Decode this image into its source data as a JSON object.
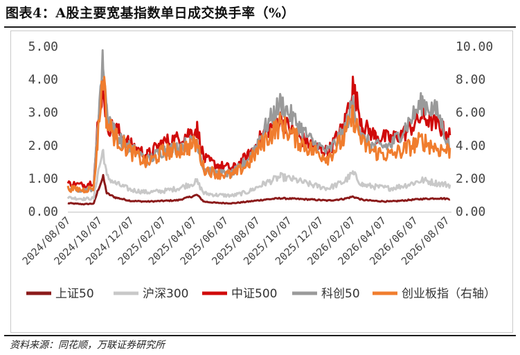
{
  "title": "图表4：A股主要宽基指数单日成交换手率（%）",
  "source": "资料来源：同花顺，万联证券研究所",
  "chart_data": {
    "type": "line",
    "x_start": "2024-08-01",
    "x_end": "2026-08-10",
    "x_ticks": [
      "2024/08/07",
      "2024/10/07",
      "2024/12/07",
      "2025/02/07",
      "2025/04/07",
      "2025/06/07",
      "2025/08/07",
      "2025/10/07",
      "2025/12/07",
      "2026/02/07",
      "2026/04/07",
      "2026/06/07",
      "2026/08/07"
    ],
    "y_left": {
      "min": 0,
      "max": 5,
      "ticks": [
        "0.00",
        "1.00",
        "2.00",
        "3.00",
        "4.00",
        "5.00"
      ]
    },
    "y_right": {
      "min": 0,
      "max": 10,
      "ticks": [
        "0.00",
        "2.00",
        "4.00",
        "6.00",
        "8.00",
        "10.00"
      ]
    },
    "grid": false,
    "legend_position": "bottom",
    "series": [
      {
        "name": "上证50",
        "color": "#8b1a1a",
        "axis": "left",
        "points": [
          [
            "2024-08-01",
            0.25
          ],
          [
            "2024-09-01",
            0.22
          ],
          [
            "2024-09-20",
            0.24
          ],
          [
            "2024-09-27",
            0.6
          ],
          [
            "2024-10-08",
            1.05
          ],
          [
            "2024-10-15",
            0.55
          ],
          [
            "2024-11-01",
            0.42
          ],
          [
            "2024-12-01",
            0.32
          ],
          [
            "2025-01-01",
            0.3
          ],
          [
            "2025-02-01",
            0.32
          ],
          [
            "2025-03-01",
            0.34
          ],
          [
            "2025-04-07",
            0.5
          ],
          [
            "2025-04-20",
            0.3
          ],
          [
            "2025-05-15",
            0.26
          ],
          [
            "2025-06-15",
            0.25
          ],
          [
            "2025-07-15",
            0.3
          ],
          [
            "2025-08-15",
            0.36
          ],
          [
            "2025-09-15",
            0.4
          ],
          [
            "2025-10-15",
            0.38
          ],
          [
            "2025-11-15",
            0.36
          ],
          [
            "2025-12-15",
            0.33
          ],
          [
            "2026-01-15",
            0.38
          ],
          [
            "2026-02-01",
            0.45
          ],
          [
            "2026-02-20",
            0.35
          ],
          [
            "2026-03-15",
            0.32
          ],
          [
            "2026-04-15",
            0.3
          ],
          [
            "2026-05-15",
            0.34
          ],
          [
            "2026-06-15",
            0.38
          ],
          [
            "2026-07-15",
            0.4
          ],
          [
            "2026-08-07",
            0.38
          ]
        ]
      },
      {
        "name": "沪深300",
        "color": "#c8c8c8",
        "axis": "left",
        "points": [
          [
            "2024-08-01",
            0.42
          ],
          [
            "2024-09-01",
            0.38
          ],
          [
            "2024-09-20",
            0.4
          ],
          [
            "2024-09-27",
            1.1
          ],
          [
            "2024-10-08",
            1.85
          ],
          [
            "2024-10-15",
            1.05
          ],
          [
            "2024-11-01",
            0.85
          ],
          [
            "2024-12-01",
            0.65
          ],
          [
            "2025-01-01",
            0.58
          ],
          [
            "2025-02-01",
            0.62
          ],
          [
            "2025-03-01",
            0.7
          ],
          [
            "2025-04-07",
            0.9
          ],
          [
            "2025-04-20",
            0.55
          ],
          [
            "2025-05-15",
            0.5
          ],
          [
            "2025-06-15",
            0.48
          ],
          [
            "2025-07-15",
            0.6
          ],
          [
            "2025-08-15",
            0.85
          ],
          [
            "2025-09-15",
            1.05
          ],
          [
            "2025-10-15",
            0.95
          ],
          [
            "2025-11-15",
            0.8
          ],
          [
            "2025-12-15",
            0.7
          ],
          [
            "2026-01-15",
            0.9
          ],
          [
            "2026-02-01",
            1.15
          ],
          [
            "2026-02-20",
            0.8
          ],
          [
            "2026-03-15",
            0.75
          ],
          [
            "2026-04-15",
            0.7
          ],
          [
            "2026-05-15",
            0.8
          ],
          [
            "2026-06-15",
            0.95
          ],
          [
            "2026-07-15",
            0.85
          ],
          [
            "2026-08-07",
            0.8
          ]
        ]
      },
      {
        "name": "中证500",
        "color": "#d00a0a",
        "axis": "left",
        "points": [
          [
            "2024-08-01",
            0.85
          ],
          [
            "2024-09-01",
            0.8
          ],
          [
            "2024-09-20",
            0.9
          ],
          [
            "2024-09-27",
            2.5
          ],
          [
            "2024-10-08",
            3.9
          ],
          [
            "2024-10-15",
            2.6
          ],
          [
            "2024-11-01",
            2.5
          ],
          [
            "2024-12-01",
            2.0
          ],
          [
            "2025-01-01",
            1.7
          ],
          [
            "2025-02-01",
            2.1
          ],
          [
            "2025-03-01",
            2.2
          ],
          [
            "2025-04-07",
            2.5
          ],
          [
            "2025-04-20",
            1.6
          ],
          [
            "2025-05-15",
            1.4
          ],
          [
            "2025-06-15",
            1.3
          ],
          [
            "2025-07-15",
            1.7
          ],
          [
            "2025-08-15",
            2.4
          ],
          [
            "2025-09-15",
            2.8
          ],
          [
            "2025-10-15",
            2.3
          ],
          [
            "2025-11-15",
            2.0
          ],
          [
            "2025-12-15",
            1.8
          ],
          [
            "2026-01-15",
            2.6
          ],
          [
            "2026-02-01",
            3.8
          ],
          [
            "2026-02-20",
            2.6
          ],
          [
            "2026-03-15",
            2.3
          ],
          [
            "2026-04-15",
            2.2
          ],
          [
            "2026-05-15",
            2.4
          ],
          [
            "2026-06-15",
            2.9
          ],
          [
            "2026-07-15",
            2.6
          ],
          [
            "2026-08-07",
            2.3
          ]
        ]
      },
      {
        "name": "科创50",
        "color": "#9a9a9a",
        "axis": "left",
        "points": [
          [
            "2024-08-01",
            0.7
          ],
          [
            "2024-09-01",
            0.65
          ],
          [
            "2024-09-20",
            0.7
          ],
          [
            "2024-09-27",
            2.6
          ],
          [
            "2024-10-08",
            4.65
          ],
          [
            "2024-10-15",
            3.1
          ],
          [
            "2024-11-01",
            2.3
          ],
          [
            "2024-12-01",
            1.9
          ],
          [
            "2025-01-01",
            1.55
          ],
          [
            "2025-02-01",
            1.85
          ],
          [
            "2025-03-01",
            1.95
          ],
          [
            "2025-04-07",
            2.15
          ],
          [
            "2025-04-20",
            1.3
          ],
          [
            "2025-05-15",
            1.15
          ],
          [
            "2025-06-15",
            1.15
          ],
          [
            "2025-07-15",
            1.6
          ],
          [
            "2025-08-15",
            2.5
          ],
          [
            "2025-09-15",
            3.3
          ],
          [
            "2025-10-15",
            2.7
          ],
          [
            "2025-11-15",
            2.1
          ],
          [
            "2025-12-15",
            1.8
          ],
          [
            "2026-01-15",
            2.4
          ],
          [
            "2026-02-01",
            3.3
          ],
          [
            "2026-02-20",
            2.2
          ],
          [
            "2026-03-15",
            1.95
          ],
          [
            "2026-04-15",
            2.0
          ],
          [
            "2026-05-15",
            2.6
          ],
          [
            "2026-06-15",
            3.3
          ],
          [
            "2026-07-15",
            3.0
          ],
          [
            "2026-08-07",
            1.9
          ]
        ]
      },
      {
        "name": "创业板指（右轴）",
        "color": "#f07d2e",
        "axis": "right",
        "points": [
          [
            "2024-08-01",
            1.4
          ],
          [
            "2024-09-01",
            1.3
          ],
          [
            "2024-09-20",
            1.45
          ],
          [
            "2024-09-27",
            4.2
          ],
          [
            "2024-10-08",
            8.5
          ],
          [
            "2024-10-15",
            5.4
          ],
          [
            "2024-11-01",
            4.5
          ],
          [
            "2024-12-01",
            3.6
          ],
          [
            "2025-01-01",
            2.9
          ],
          [
            "2025-02-01",
            3.6
          ],
          [
            "2025-03-01",
            3.7
          ],
          [
            "2025-04-07",
            4.1
          ],
          [
            "2025-04-20",
            2.6
          ],
          [
            "2025-05-15",
            2.3
          ],
          [
            "2025-06-15",
            2.2
          ],
          [
            "2025-07-15",
            2.9
          ],
          [
            "2025-08-15",
            4.3
          ],
          [
            "2025-09-15",
            5.3
          ],
          [
            "2025-10-15",
            4.4
          ],
          [
            "2025-11-15",
            3.7
          ],
          [
            "2025-12-15",
            3.3
          ],
          [
            "2026-01-15",
            4.4
          ],
          [
            "2026-02-01",
            5.8
          ],
          [
            "2026-02-20",
            4.1
          ],
          [
            "2026-03-15",
            3.6
          ],
          [
            "2026-04-15",
            3.4
          ],
          [
            "2026-05-15",
            3.8
          ],
          [
            "2026-06-15",
            4.3
          ],
          [
            "2026-07-15",
            3.8
          ],
          [
            "2026-08-07",
            3.7
          ]
        ]
      }
    ]
  }
}
